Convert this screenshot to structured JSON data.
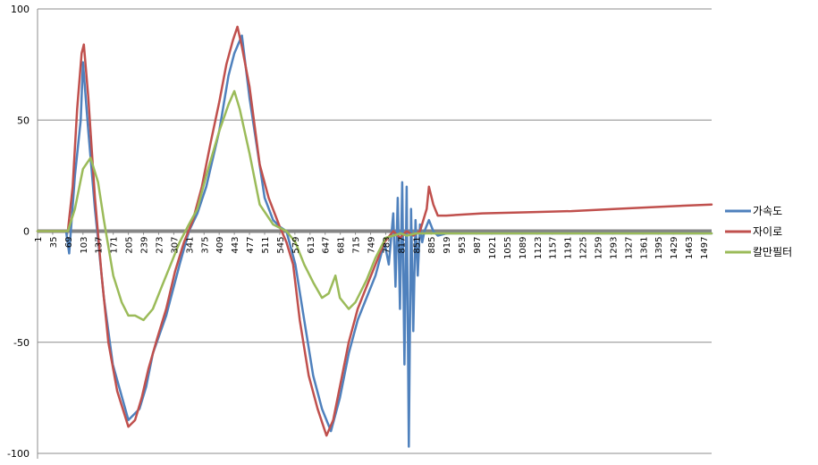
{
  "chart_data": {
    "type": "line",
    "title": "",
    "xlabel": "",
    "ylabel": "",
    "ylim": [
      -100,
      100
    ],
    "yticks": [
      100,
      50,
      0,
      -50,
      -100
    ],
    "grid": true,
    "legend_position": "right",
    "x_tick_labels": [
      "1",
      "35",
      "69",
      "103",
      "137",
      "171",
      "205",
      "239",
      "273",
      "307",
      "341",
      "375",
      "409",
      "443",
      "477",
      "511",
      "545",
      "579",
      "613",
      "647",
      "681",
      "715",
      "749",
      "783",
      "817",
      "851",
      "885",
      "919",
      "953",
      "987",
      "1021",
      "1055",
      "1089",
      "1123",
      "1157",
      "1191",
      "1225",
      "1259",
      "1293",
      "1327",
      "1361",
      "1395",
      "1429",
      "1463",
      "1497"
    ],
    "x_range": [
      1,
      1515
    ],
    "series": [
      {
        "name": "가속도",
        "color": "#4f81bd",
        "x": [
          1,
          40,
          65,
          72,
          85,
          98,
          103,
          115,
          130,
          140,
          150,
          170,
          205,
          230,
          245,
          260,
          290,
          320,
          341,
          360,
          380,
          409,
          430,
          443,
          460,
          477,
          511,
          530,
          545,
          560,
          580,
          600,
          620,
          640,
          660,
          680,
          700,
          720,
          740,
          760,
          780,
          790,
          800,
          805,
          810,
          815,
          820,
          825,
          830,
          835,
          840,
          845,
          850,
          855,
          860,
          865,
          870,
          880,
          890,
          900,
          919,
          1000,
          1100,
          1200,
          1300,
          1400,
          1515
        ],
        "y": [
          0,
          0,
          0,
          -10,
          25,
          50,
          76,
          45,
          10,
          -10,
          -30,
          -60,
          -85,
          -80,
          -70,
          -55,
          -38,
          -15,
          0,
          8,
          20,
          45,
          70,
          80,
          88,
          60,
          15,
          5,
          2,
          0,
          -15,
          -40,
          -65,
          -80,
          -90,
          -75,
          -55,
          -40,
          -30,
          -20,
          -5,
          -15,
          8,
          -25,
          15,
          -35,
          22,
          -60,
          20,
          -97,
          10,
          -45,
          5,
          -20,
          3,
          -5,
          0,
          5,
          0,
          -2,
          -1,
          -1,
          -1,
          -1,
          -1,
          -1,
          -1
        ]
      },
      {
        "name": "자이로",
        "color": "#c0504d",
        "x": [
          1,
          40,
          69,
          80,
          90,
          100,
          105,
          115,
          130,
          145,
          160,
          180,
          205,
          220,
          235,
          250,
          270,
          290,
          310,
          330,
          350,
          370,
          390,
          409,
          425,
          440,
          450,
          460,
          477,
          500,
          520,
          545,
          560,
          575,
          590,
          610,
          630,
          650,
          665,
          680,
          700,
          720,
          740,
          760,
          780,
          800,
          815,
          830,
          845,
          860,
          875,
          880,
          890,
          900,
          910,
          919,
          1000,
          1100,
          1200,
          1300,
          1400,
          1515
        ],
        "y": [
          0,
          0,
          0,
          20,
          55,
          80,
          84,
          60,
          15,
          -20,
          -50,
          -72,
          -88,
          -85,
          -75,
          -62,
          -48,
          -35,
          -18,
          -5,
          5,
          20,
          40,
          58,
          75,
          86,
          92,
          83,
          65,
          30,
          15,
          2,
          -5,
          -15,
          -40,
          -65,
          -80,
          -92,
          -85,
          -70,
          -50,
          -35,
          -25,
          -15,
          -5,
          0,
          -3,
          0,
          -2,
          0,
          10,
          20,
          12,
          7,
          7,
          7,
          8,
          8.5,
          9,
          10,
          11,
          12
        ]
      },
      {
        "name": "칼만필터",
        "color": "#9bbb59",
        "x": [
          1,
          69,
          85,
          103,
          120,
          137,
          150,
          171,
          190,
          205,
          220,
          239,
          260,
          280,
          300,
          320,
          341,
          360,
          380,
          409,
          430,
          443,
          455,
          477,
          500,
          530,
          560,
          580,
          600,
          620,
          640,
          655,
          670,
          680,
          700,
          715,
          740,
          760,
          783,
          800,
          817,
          830,
          851,
          870,
          900,
          919,
          1000,
          1100,
          1200,
          1300,
          1400,
          1515
        ],
        "y": [
          0,
          0,
          10,
          28,
          33,
          22,
          5,
          -20,
          -32,
          -38,
          -38,
          -40,
          -35,
          -25,
          -15,
          -5,
          3,
          10,
          25,
          45,
          57,
          63,
          55,
          35,
          12,
          3,
          0,
          -5,
          -15,
          -23,
          -30,
          -28,
          -20,
          -30,
          -35,
          -32,
          -22,
          -12,
          -3,
          -2,
          -1,
          -2,
          -1,
          -1,
          -1,
          -1,
          -1,
          -1,
          -1,
          -1,
          -1,
          -1
        ]
      }
    ]
  }
}
